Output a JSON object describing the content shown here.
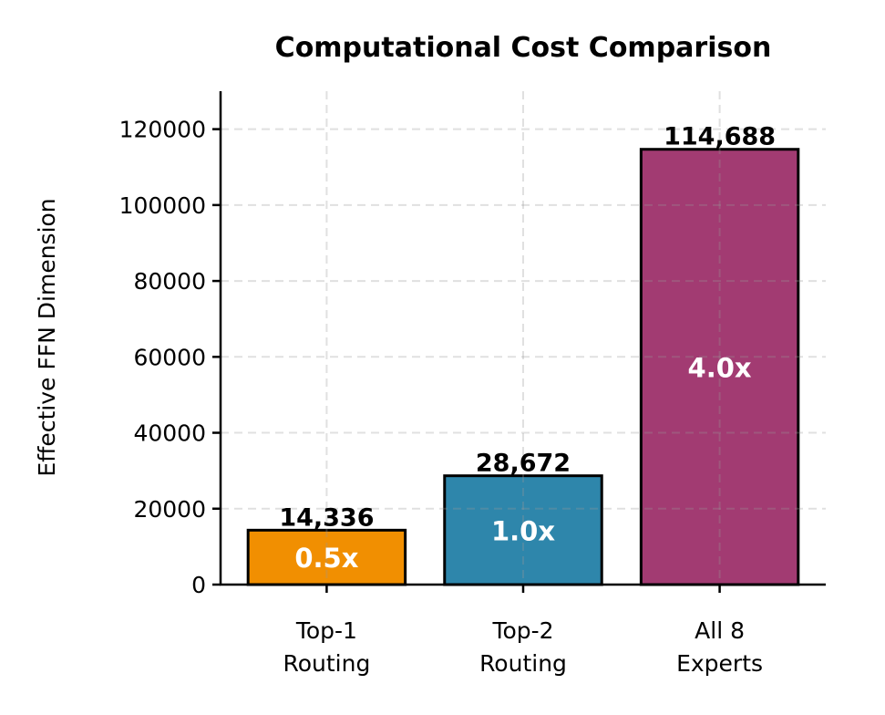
{
  "chart_data": {
    "type": "bar",
    "title": "Computational Cost Comparison",
    "xlabel": "",
    "ylabel": "Effective FFN Dimension",
    "categories": [
      "Top-1\nRouting",
      "Top-2\nRouting",
      "All 8\nExperts"
    ],
    "values": [
      14336,
      28672,
      114688
    ],
    "value_labels": [
      "14,336",
      "28,672",
      "114,688"
    ],
    "ratio_labels": [
      "0.5x",
      "1.0x",
      "4.0x"
    ],
    "colors": [
      "#F18F01",
      "#2E86AB",
      "#A23B72"
    ],
    "ylim": [
      0,
      130000
    ],
    "yticks": [
      0,
      20000,
      40000,
      60000,
      80000,
      100000,
      120000
    ],
    "ytick_labels": [
      "0",
      "20000",
      "40000",
      "60000",
      "80000",
      "100000",
      "120000"
    ],
    "grid": true,
    "grid_style": "dashed"
  }
}
